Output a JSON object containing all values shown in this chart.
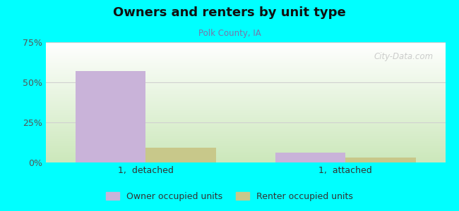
{
  "title": "Owners and renters by unit type",
  "subtitle": "Polk County, IA",
  "categories": [
    "1,  detached",
    "1,  attached"
  ],
  "owner_values": [
    57,
    6
  ],
  "renter_values": [
    9,
    3
  ],
  "owner_color": "#c9b3d9",
  "renter_color": "#c8c88a",
  "ylim": [
    0,
    75
  ],
  "yticks": [
    0,
    25,
    50,
    75
  ],
  "ytick_labels": [
    "0%",
    "25%",
    "50%",
    "75%"
  ],
  "bar_width": 0.32,
  "background_color": "#00ffff",
  "bg_color_top": "#ffffff",
  "bg_color_bottom": "#cce8bb",
  "legend_owner": "Owner occupied units",
  "legend_renter": "Renter occupied units",
  "watermark": "City-Data.com",
  "grid_color": "#d0d0d0",
  "group_positions": [
    0.25,
    0.75
  ]
}
